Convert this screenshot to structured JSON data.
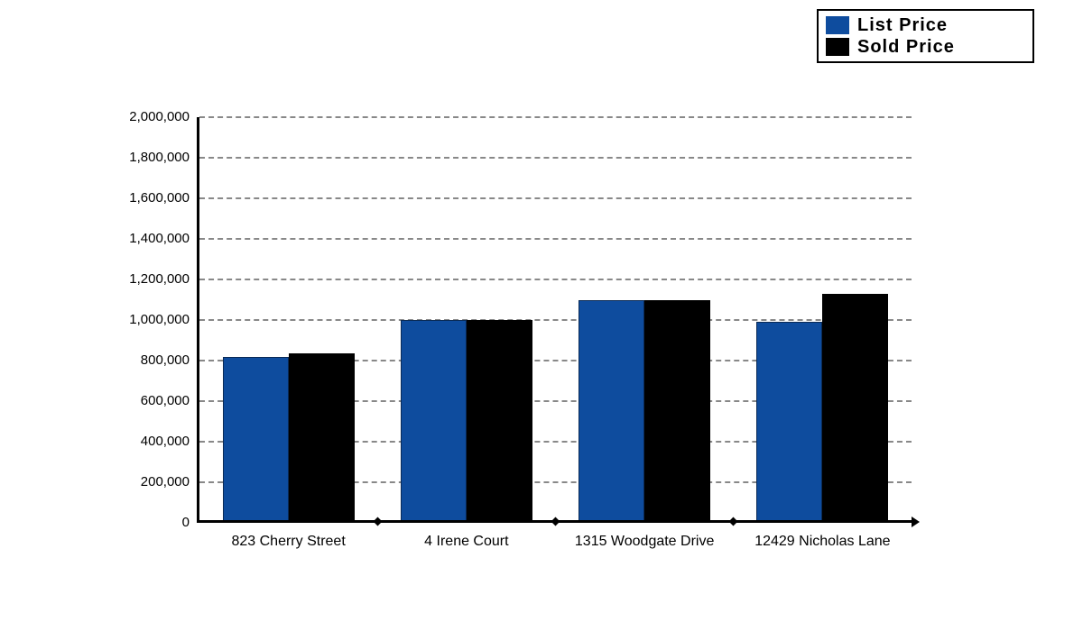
{
  "page": {
    "background_color": "#ffffff",
    "text_color": "#000000"
  },
  "chart_data": {
    "type": "bar",
    "title": "",
    "xlabel": "",
    "ylabel": "",
    "categories": [
      "823 Cherry Street",
      "4 Irene Court",
      "1315 Woodgate Drive",
      "12429 Nicholas Lane"
    ],
    "series": [
      {
        "name": "List Price",
        "color": "#0e4c9e",
        "values": [
          820000,
          1000000,
          1100000,
          990000
        ]
      },
      {
        "name": "Sold Price",
        "color": "#000000",
        "values": [
          835000,
          1000000,
          1100000,
          1130000
        ]
      }
    ],
    "ylim": [
      0,
      2000000
    ],
    "ytick_step": 200000,
    "ytick_labels": [
      "0",
      "200,000",
      "400,000",
      "600,000",
      "800,000",
      "1,000,000",
      "1,200,000",
      "1,400,000",
      "1,600,000",
      "1,800,000",
      "2,000,000"
    ],
    "grid": "horizontal-dashed",
    "gridline_color": "#888888",
    "axis_color": "#000000",
    "legend_position": "top-right"
  }
}
